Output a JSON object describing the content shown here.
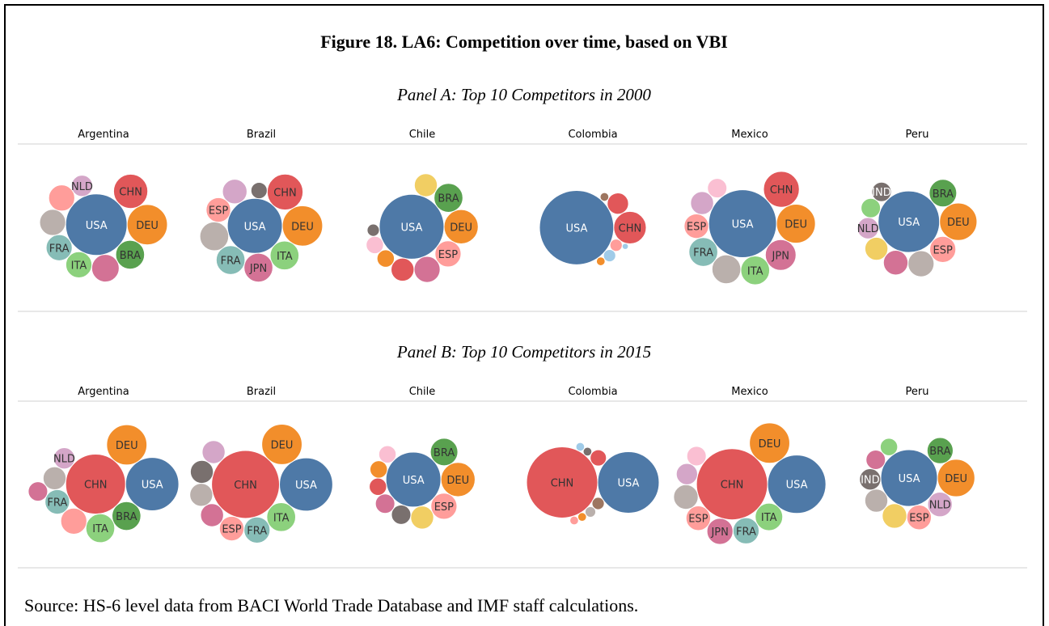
{
  "figure_title": "Figure 18. LA6: Competition over time, based on VBI",
  "source": "Source: HS-6 level data from BACI World Trade Database and IMF staff calculations.",
  "panels": [
    {
      "title": "Panel A: Top 10 Competitors in 2000",
      "chart_data": [
        {
          "type": "packed-bubble",
          "title": "Argentina",
          "categories": [
            "USA",
            "DEU",
            "CHN",
            "BRA",
            null,
            "ITA",
            "FRA",
            null,
            null,
            "NLD"
          ],
          "colors": [
            "#4e79a7",
            "#f28e2b",
            "#e15759",
            "#59a14f",
            "#d37295",
            "#8cd17d",
            "#86bcb6",
            "#bab0ac",
            "#ff9d9a",
            "#d4a6c8"
          ],
          "values": [
            100,
            43,
            31,
            22,
            20,
            18,
            18,
            18,
            18,
            12
          ]
        },
        {
          "type": "packed-bubble",
          "title": "Brazil",
          "categories": [
            "USA",
            "DEU",
            "CHN",
            "ITA",
            "JPN",
            "FRA",
            null,
            "ESP",
            null,
            null
          ],
          "colors": [
            "#4e79a7",
            "#f28e2b",
            "#e15759",
            "#8cd17d",
            "#d37295",
            "#86bcb6",
            "#bab0ac",
            "#ff9d9a",
            "#d4a6c8",
            "#79706e"
          ],
          "values": [
            80,
            43,
            34,
            22,
            22,
            22,
            22,
            16,
            16,
            7
          ]
        },
        {
          "type": "packed-bubble",
          "title": "Chile",
          "categories": [
            "USA",
            "DEU",
            "BRA",
            "ESP",
            null,
            null,
            null,
            null,
            null,
            null
          ],
          "colors": [
            "#4e79a7",
            "#f28e2b",
            "#59a14f",
            "#ff9d9a",
            "#d37295",
            "#f1ce63",
            "#e15759",
            "#f28e2b",
            "#fabfd2",
            "#79706e"
          ],
          "values": [
            111,
            31,
            22,
            18,
            18,
            14,
            14,
            8,
            8,
            4
          ]
        },
        {
          "type": "packed-bubble",
          "title": "Colombia",
          "categories": [
            "USA",
            "CHN",
            null,
            null,
            null,
            null,
            null,
            null
          ],
          "colors": [
            "#4e79a7",
            "#e15759",
            "#e15759",
            "#ff9d9a",
            "#a0cbe8",
            "#9d7660",
            "#f28e2b",
            "#a0cbe8"
          ],
          "values": [
            146,
            28,
            12,
            4,
            4,
            2,
            2,
            1
          ]
        },
        {
          "type": "packed-bubble",
          "title": "Mexico",
          "categories": [
            "USA",
            "DEU",
            "CHN",
            "JPN",
            "ITA",
            null,
            "FRA",
            "ESP",
            null,
            null
          ],
          "colors": [
            "#4e79a7",
            "#f28e2b",
            "#e15759",
            "#d37295",
            "#8cd17d",
            "#bab0ac",
            "#86bcb6",
            "#ff9d9a",
            "#d4a6c8",
            "#fabfd2"
          ],
          "values": [
            122,
            40,
            34,
            25,
            22,
            22,
            22,
            16,
            14,
            10
          ]
        },
        {
          "type": "packed-bubble",
          "title": "Peru",
          "categories": [
            "USA",
            "DEU",
            "BRA",
            "ESP",
            null,
            null,
            null,
            "NLD",
            null,
            "IND"
          ],
          "colors": [
            "#4e79a7",
            "#f28e2b",
            "#59a14f",
            "#ff9d9a",
            "#bab0ac",
            "#d37295",
            "#f1ce63",
            "#d4a6c8",
            "#8cd17d",
            "#79706e"
          ],
          "values": [
            100,
            37,
            20,
            18,
            18,
            16,
            14,
            12,
            10,
            10
          ]
        }
      ]
    },
    {
      "title": "Panel B: Top 10 Competitors in 2015",
      "chart_data": [
        {
          "type": "packed-bubble",
          "title": "Argentina",
          "categories": [
            "CHN",
            "USA",
            "DEU",
            "BRA",
            "ITA",
            null,
            "FRA",
            null,
            "NLD",
            null
          ],
          "colors": [
            "#e15759",
            "#4e79a7",
            "#f28e2b",
            "#59a14f",
            "#8cd17d",
            "#ff9d9a",
            "#86bcb6",
            "#bab0ac",
            "#d4a6c8",
            "#d37295"
          ],
          "values": [
            95,
            75,
            43,
            22,
            22,
            18,
            16,
            14,
            12,
            10
          ]
        },
        {
          "type": "packed-bubble",
          "title": "Brazil",
          "categories": [
            "CHN",
            "USA",
            "DEU",
            "ITA",
            "FRA",
            "ESP",
            null,
            null,
            null,
            null
          ],
          "colors": [
            "#e15759",
            "#4e79a7",
            "#f28e2b",
            "#8cd17d",
            "#86bcb6",
            "#ff9d9a",
            "#d37295",
            "#bab0ac",
            "#79706e",
            "#d4a6c8"
          ],
          "values": [
            122,
            75,
            43,
            22,
            18,
            16,
            14,
            14,
            14,
            14
          ]
        },
        {
          "type": "packed-bubble",
          "title": "Chile",
          "categories": [
            "USA",
            "DEU",
            "BRA",
            "ESP",
            null,
            null,
            null,
            null,
            null,
            null
          ],
          "colors": [
            "#4e79a7",
            "#f28e2b",
            "#59a14f",
            "#ff9d9a",
            "#f1ce63",
            "#79706e",
            "#d37295",
            "#e15759",
            "#f28e2b",
            "#fabfd2"
          ],
          "values": [
            80,
            31,
            20,
            18,
            14,
            10,
            10,
            8,
            8,
            8
          ]
        },
        {
          "type": "packed-bubble",
          "title": "Colombia",
          "categories": [
            "CHN",
            "USA",
            null,
            null,
            null,
            null,
            null,
            null,
            null
          ],
          "colors": [
            "#e15759",
            "#4e79a7",
            "#e15759",
            "#9d7660",
            "#bab0ac",
            "#79706e",
            "#f28e2b",
            "#a0cbe8",
            "#ff9d9a"
          ],
          "values": [
            134,
            100,
            7,
            4,
            3,
            2,
            2,
            2,
            2
          ]
        },
        {
          "type": "packed-bubble",
          "title": "Mexico",
          "categories": [
            "CHN",
            "USA",
            "DEU",
            "ITA",
            "FRA",
            "JPN",
            "ESP",
            null,
            null,
            null
          ],
          "colors": [
            "#e15759",
            "#4e79a7",
            "#f28e2b",
            "#8cd17d",
            "#86bcb6",
            "#d37295",
            "#ff9d9a",
            "#bab0ac",
            "#d4a6c8",
            "#fabfd2"
          ],
          "values": [
            134,
            90,
            43,
            20,
            18,
            18,
            16,
            16,
            12,
            10
          ]
        },
        {
          "type": "packed-bubble",
          "title": "Peru",
          "categories": [
            "USA",
            "DEU",
            "BRA",
            "NLD",
            "ESP",
            null,
            null,
            "IND",
            null,
            null
          ],
          "colors": [
            "#4e79a7",
            "#f28e2b",
            "#59a14f",
            "#d4a6c8",
            "#ff9d9a",
            "#f1ce63",
            "#bab0ac",
            "#79706e",
            "#d37295",
            "#8cd17d"
          ],
          "values": [
            85,
            37,
            18,
            16,
            16,
            16,
            14,
            12,
            10,
            8
          ]
        }
      ]
    }
  ]
}
